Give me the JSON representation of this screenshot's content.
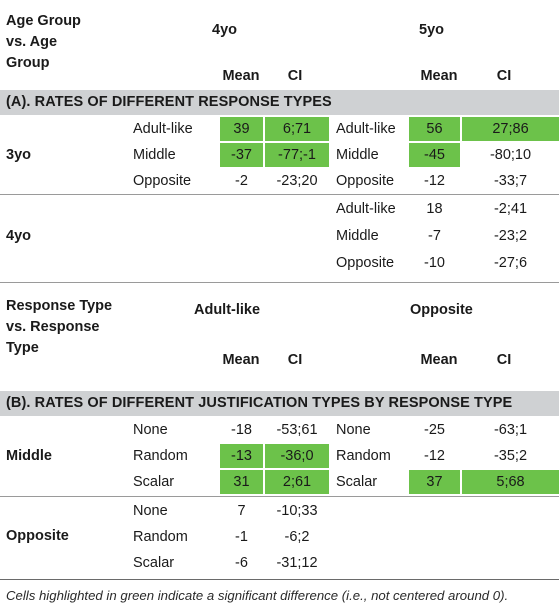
{
  "header1": {
    "corner": [
      "Age Group",
      "vs. Age",
      "Group"
    ],
    "col_a": "4yo",
    "col_b": "5yo",
    "mean": "Mean",
    "ci": "CI"
  },
  "sectionA": {
    "title": "(A). RATES OF DIFFERENT RESPONSE TYPES",
    "group3": {
      "label": "3yo",
      "rows": [
        {
          "type_a": "Adult-like",
          "mean_a": "39",
          "ci_a": "6;71",
          "type_b": "Adult-like",
          "mean_b": "56",
          "ci_b": "27;86"
        },
        {
          "type_a": "Middle",
          "mean_a": "-37",
          "ci_a": "-77;-1",
          "type_b": "Middle",
          "mean_b": "-45",
          "ci_b": "-80;10"
        },
        {
          "type_a": "Opposite",
          "mean_a": "-2",
          "ci_a": "-23;20",
          "type_b": "Opposite",
          "mean_b": "-12",
          "ci_b": "-33;7"
        }
      ]
    },
    "group4": {
      "label": "4yo",
      "rows": [
        {
          "type_b": "Adult-like",
          "mean_b": "18",
          "ci_b": "-2;41"
        },
        {
          "type_b": "Middle",
          "mean_b": "-7",
          "ci_b": "-23;2"
        },
        {
          "type_b": "Opposite",
          "mean_b": "-10",
          "ci_b": "-27;6"
        }
      ]
    }
  },
  "header2": {
    "corner": [
      "Response Type",
      "vs. Response",
      "Type"
    ],
    "col_a": "Adult-like",
    "col_b": "Opposite",
    "mean": "Mean",
    "ci": "CI"
  },
  "sectionB": {
    "title": "(B). RATES OF DIFFERENT JUSTIFICATION TYPES BY RESPONSE TYPE",
    "middle": {
      "label": "Middle",
      "rows": [
        {
          "type_a": "None",
          "mean_a": "-18",
          "ci_a": "-53;61",
          "type_b": "None",
          "mean_b": "-25",
          "ci_b": "-63;1"
        },
        {
          "type_a": "Random",
          "mean_a": "-13",
          "ci_a": "-36;0",
          "type_b": "Random",
          "mean_b": "-12",
          "ci_b": "-35;2"
        },
        {
          "type_a": "Scalar",
          "mean_a": "31",
          "ci_a": "2;61",
          "type_b": "Scalar",
          "mean_b": "37",
          "ci_b": "5;68"
        }
      ]
    },
    "opposite": {
      "label": "Opposite",
      "rows": [
        {
          "type_a": "None",
          "mean_a": "7",
          "ci_a": "-10;33"
        },
        {
          "type_a": "Random",
          "mean_a": "-1",
          "ci_a": "-6;2"
        },
        {
          "type_a": "Scalar",
          "mean_a": "-6",
          "ci_a": "-31;12"
        }
      ]
    }
  },
  "footnote": "Cells highlighted in green indicate a significant difference (i.e., not centered around 0).",
  "colors": {
    "significant": "#6cc24a",
    "band": "#cfd1d3"
  }
}
